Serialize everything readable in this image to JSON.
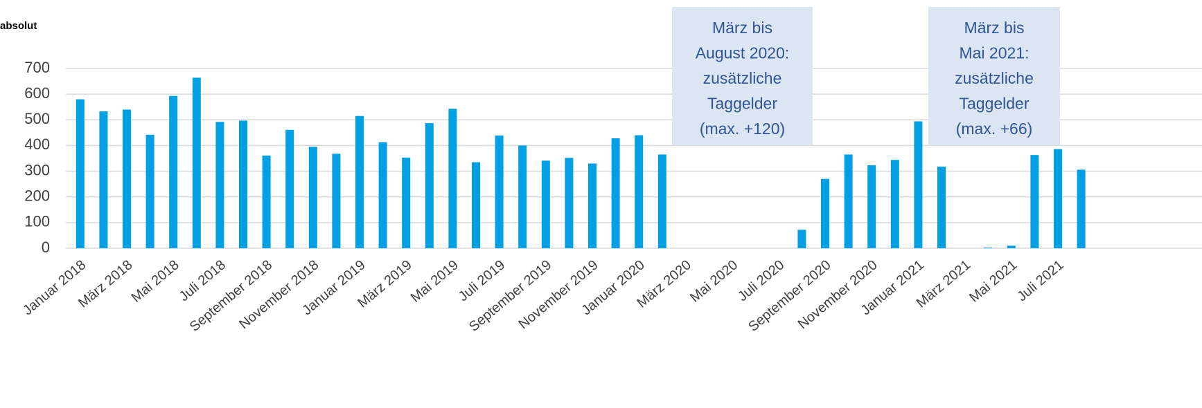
{
  "chart_data": {
    "type": "bar",
    "y_axis_label": "absolut",
    "categories": [
      "Januar 2018",
      null,
      "März 2018",
      null,
      "Mai 2018",
      null,
      "Juli 2018",
      null,
      "September 2018",
      null,
      "November 2018",
      null,
      "Januar 2019",
      null,
      "März 2019",
      null,
      "Mai 2019",
      null,
      "Juli 2019",
      null,
      "September 2019",
      null,
      "November 2019",
      null,
      "Januar 2020",
      null,
      "März 2020",
      null,
      "Mai 2020",
      null,
      "Juli 2020",
      null,
      "September 2020",
      null,
      "November 2020",
      null,
      "Januar 2021",
      null,
      "März 2021",
      null,
      "Mai 2021",
      null,
      "Juli 2021",
      null
    ],
    "values": [
      580,
      533,
      540,
      442,
      593,
      664,
      492,
      497,
      361,
      461,
      395,
      368,
      515,
      413,
      353,
      487,
      543,
      335,
      439,
      400,
      341,
      352,
      330,
      428,
      440,
      365,
      0,
      0,
      0,
      0,
      0,
      72,
      270,
      365,
      323,
      344,
      494,
      318,
      0,
      3,
      10,
      363,
      386,
      306
    ],
    "color": "#00a0e3",
    "ylim": [
      0,
      700
    ],
    "yticks": [
      0,
      100,
      200,
      300,
      400,
      500,
      600,
      700
    ],
    "grid": true,
    "annotations": [
      {
        "lines": [
          "März bis",
          "August 2020:",
          "zusätzliche",
          "Taggelder",
          "(max. +120)"
        ]
      },
      {
        "lines": [
          "März bis",
          "Mai 2021:",
          "zusätzliche",
          "Taggelder",
          "(max. +66)"
        ]
      }
    ]
  }
}
